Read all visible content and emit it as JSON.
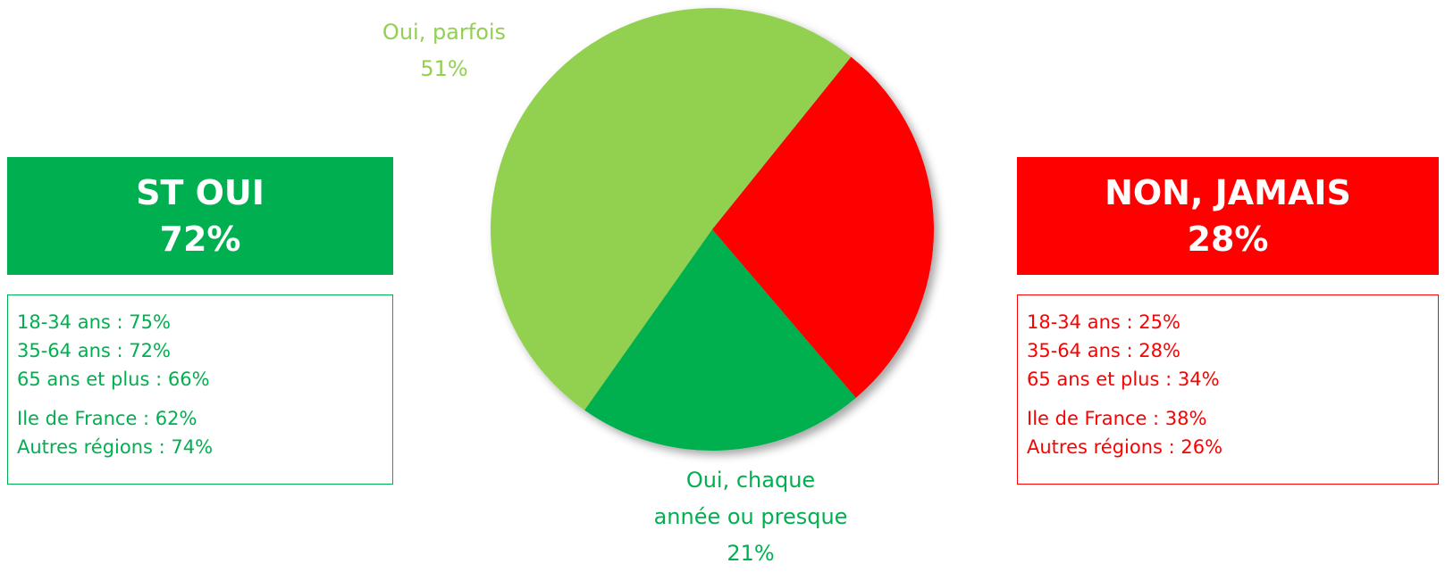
{
  "chart_data": {
    "type": "pie",
    "categories": [
      null,
      "Oui, chaque\nannée ou presque",
      "Oui, parfois"
    ],
    "values": [
      28,
      21,
      51
    ],
    "value_labels": [
      null,
      "21%",
      "51%"
    ],
    "colors": [
      "#ff0000",
      "#00b050",
      "#92d050"
    ]
  },
  "panels": [
    {
      "title": "ST OUI",
      "total": "72%",
      "color": "#00b050",
      "groups": [
        [
          "18-34 ans : 75%",
          "35-64 ans : 72%",
          "65 ans et plus : 66%"
        ],
        [
          "Ile de France : 62%",
          "Autres régions : 74%"
        ]
      ]
    },
    {
      "title": "NON, JAMAIS",
      "total": "28%",
      "color": "#ff0000",
      "groups": [
        [
          "18-34 ans : 25%",
          "35-64 ans : 28%",
          "65 ans et plus : 34%"
        ],
        [
          "Ile de France : 38%",
          "Autres régions : 26%"
        ]
      ]
    }
  ]
}
